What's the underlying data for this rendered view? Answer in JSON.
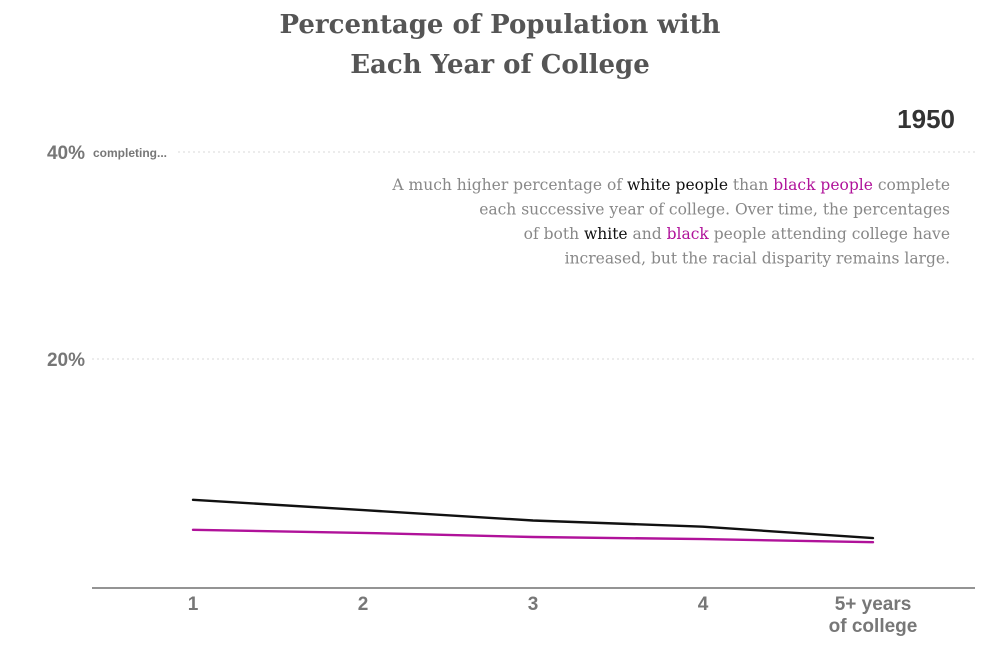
{
  "chart_data": {
    "type": "line",
    "title_lines": [
      "Percentage of Population with",
      "Each Year of College"
    ],
    "year": "1950",
    "categories": [
      "1",
      "2",
      "3",
      "4",
      "5+ years of college"
    ],
    "x_tick_lines": [
      [
        "1"
      ],
      [
        "2"
      ],
      [
        "3"
      ],
      [
        "4"
      ],
      [
        "5+ years",
        "of college"
      ]
    ],
    "y_ticks": [
      {
        "value": 20,
        "label": "20%"
      },
      {
        "value": 40,
        "label": "40%"
      }
    ],
    "y_note": "completing...",
    "ylim": [
      0,
      42
    ],
    "grid": true,
    "series": [
      {
        "name": "white people",
        "color": "#111111",
        "values": [
          6.4,
          5.4,
          4.4,
          3.8,
          2.7
        ]
      },
      {
        "name": "black people",
        "color": "#b0129a",
        "values": [
          3.5,
          3.2,
          2.8,
          2.6,
          2.3
        ]
      }
    ],
    "annotation": {
      "lines": [
        [
          {
            "t": "A much higher percentage of ",
            "c": "plain"
          },
          {
            "t": "white people",
            "c": "white"
          },
          {
            "t": " than ",
            "c": "plain"
          },
          {
            "t": "black people",
            "c": "black"
          },
          {
            "t": " complete",
            "c": "plain"
          }
        ],
        [
          {
            "t": "each successive year of college. Over time, the percentages",
            "c": "plain"
          }
        ],
        [
          {
            "t": "of both ",
            "c": "plain"
          },
          {
            "t": "white",
            "c": "white"
          },
          {
            "t": " and ",
            "c": "plain"
          },
          {
            "t": "black",
            "c": "black"
          },
          {
            "t": " people attending college have",
            "c": "plain"
          }
        ],
        [
          {
            "t": "increased, but the racial disparity remains large.",
            "c": "plain"
          }
        ]
      ]
    }
  }
}
